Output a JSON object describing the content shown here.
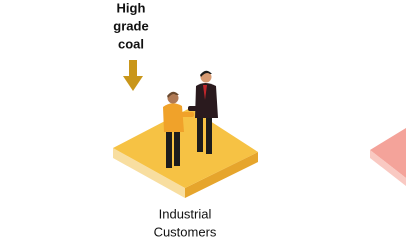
{
  "input": {
    "label_lines": [
      "High",
      "grade",
      "coal"
    ]
  },
  "destination": {
    "label_lines": [
      "Industrial",
      "Customers"
    ]
  }
}
